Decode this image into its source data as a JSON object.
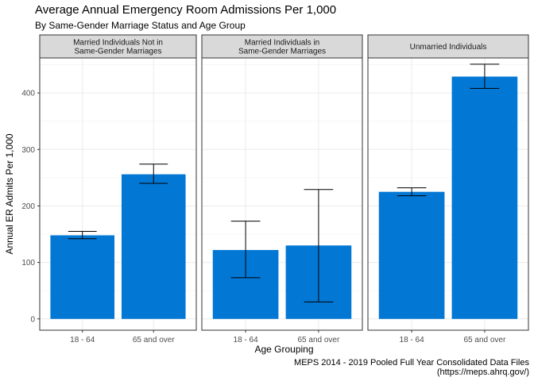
{
  "chart_data": {
    "type": "bar",
    "title": "Average Annual Emergency Room Admissions Per 1,000",
    "subtitle": "By Same-Gender Marriage Status and Age Group",
    "caption": [
      "MEPS 2014 - 2019 Pooled Full Year Consolidated Data Files",
      "(https://meps.ahrq.gov/)"
    ],
    "xlabel": "Age Grouping",
    "ylabel": "Annual ER Admits Per 1,000",
    "categories": [
      "18 - 64",
      "65 and over"
    ],
    "ylim": [
      -20,
      462
    ],
    "yticks": [
      0,
      100,
      200,
      300,
      400
    ],
    "grid": true,
    "bar_color": "#0277D4",
    "panel_border_color": "#333333",
    "strip_fill": "#D9D9D9",
    "panels": [
      {
        "label": [
          "Married Individuals Not in",
          "Same-Gender Marriages"
        ],
        "values": [
          148,
          256
        ],
        "lower": [
          142,
          240
        ],
        "upper": [
          155,
          274
        ]
      },
      {
        "label": [
          "Married Individuals in",
          "Same-Gender Marriages"
        ],
        "values": [
          122,
          130
        ],
        "lower": [
          73,
          30
        ],
        "upper": [
          173,
          229
        ]
      },
      {
        "label": [
          "Unmarried Individuals"
        ],
        "values": [
          225,
          429
        ],
        "lower": [
          218,
          408
        ],
        "upper": [
          232,
          451
        ]
      }
    ]
  }
}
